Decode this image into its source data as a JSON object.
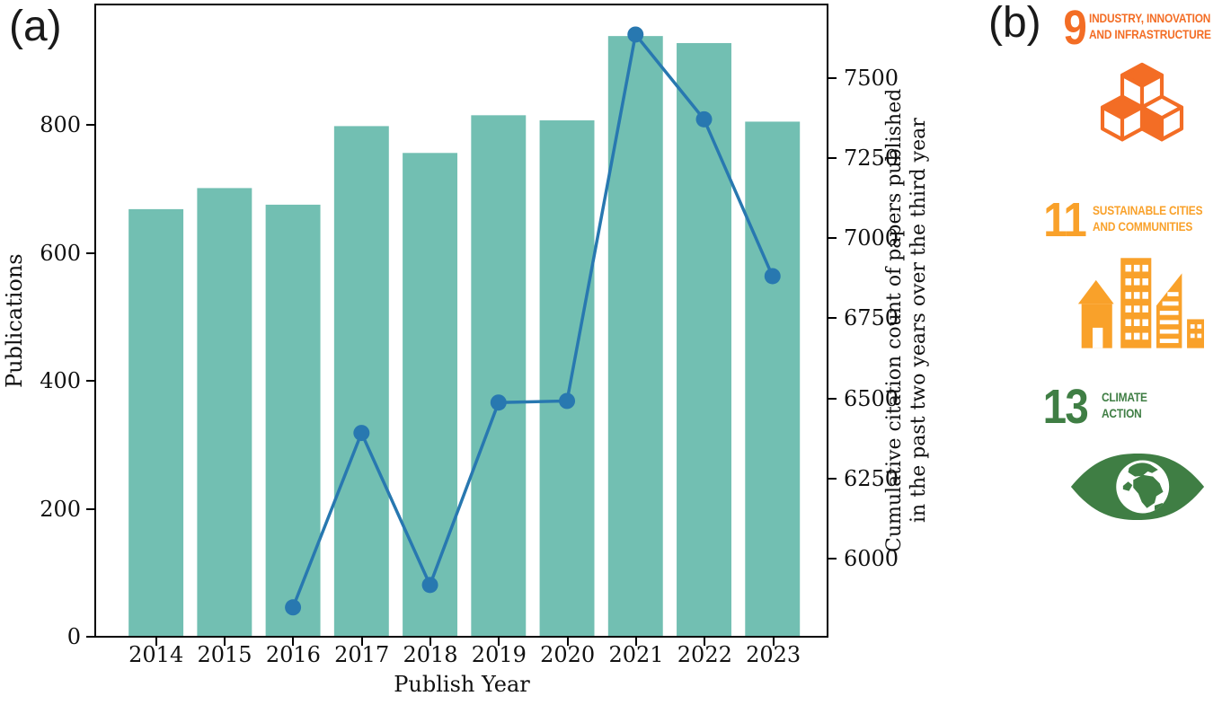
{
  "panel_a": {
    "label": "(a)"
  },
  "panel_b": {
    "label": "(b)",
    "sdgs": [
      {
        "number": "9",
        "line1": "INDUSTRY, INNOVATION",
        "line2": "AND INFRASTRUCTURE",
        "color": "#f36d25",
        "icon": "sdg9-cubes-icon"
      },
      {
        "number": "11",
        "line1": "SUSTAINABLE CITIES",
        "line2": "AND COMMUNITIES",
        "color": "#f9a12a",
        "icon": "sdg11-city-icon"
      },
      {
        "number": "13",
        "line1": "CLIMATE",
        "line2": "ACTION",
        "color": "#3f7e44",
        "icon": "sdg13-eye-globe-icon"
      }
    ]
  },
  "chart_data": {
    "type": "bar+line",
    "title": "",
    "categories": [
      "2014",
      "2015",
      "2016",
      "2017",
      "2018",
      "2019",
      "2020",
      "2021",
      "2022",
      "2023"
    ],
    "series": [
      {
        "name": "Publications",
        "type": "bar",
        "axis": "left",
        "color": "#72bfb2",
        "values": [
          668,
          701,
          675,
          798,
          756,
          815,
          807,
          939,
          928,
          805
        ]
      },
      {
        "name": "Cumulative citation count of papers published in the past two years over the third year",
        "type": "line",
        "axis": "right",
        "color": "#2878b0",
        "x": [
          "2016",
          "2017",
          "2018",
          "2019",
          "2020",
          "2021",
          "2022",
          "2023"
        ],
        "values": [
          5845,
          6390,
          5915,
          6485,
          6490,
          7635,
          7370,
          6880
        ]
      }
    ],
    "xlabel": "Publish Year",
    "ylabel_left": "Publications",
    "ylabel_right_lines": [
      "Cumulative citation count of papers published",
      "in the past two years over the third year"
    ],
    "left_ticks": [
      0,
      200,
      400,
      600,
      800
    ],
    "right_ticks": [
      6000,
      6250,
      6500,
      6750,
      7000,
      7250,
      7500
    ],
    "ylim_left": [
      0,
      987
    ],
    "ylim_right": [
      5756,
      7726
    ],
    "grid": false,
    "legend": "none"
  }
}
